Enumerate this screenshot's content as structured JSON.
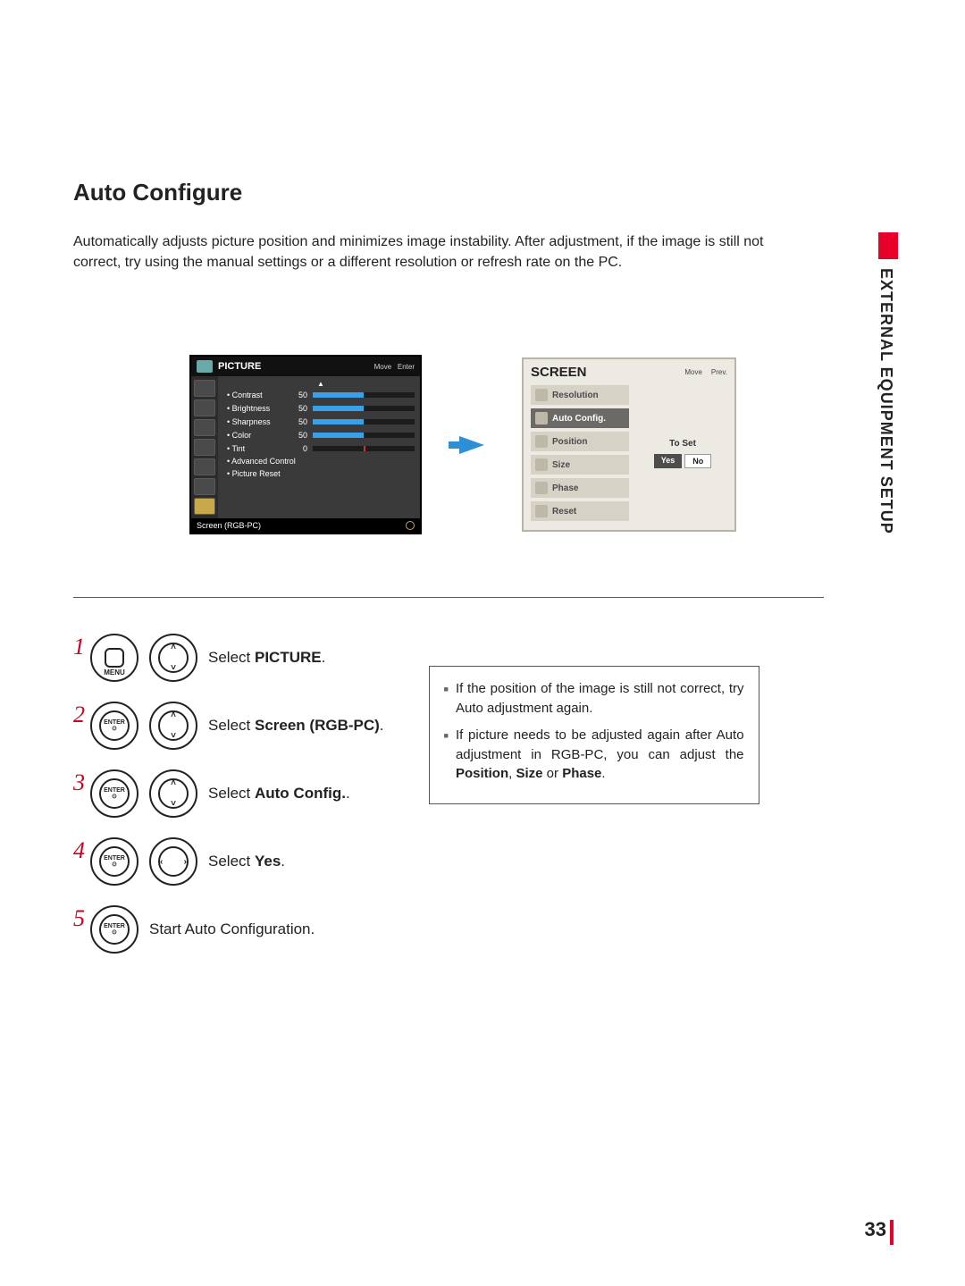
{
  "side_label": "EXTERNAL EQUIPMENT SETUP",
  "title": "Auto Configure",
  "intro": "Automatically adjusts picture position and minimizes image instability. After adjustment, if the image is still not correct, try using the manual settings or a different resolution or refresh rate on the PC.",
  "osd_picture": {
    "header": "PICTURE",
    "header_hint_move": "Move",
    "header_hint_enter": "Enter",
    "rows": [
      {
        "label": "• Contrast",
        "value": "50",
        "fill": 50
      },
      {
        "label": "• Brightness",
        "value": "50",
        "fill": 50
      },
      {
        "label": "• Sharpness",
        "value": "50",
        "fill": 50
      },
      {
        "label": "• Color",
        "value": "50",
        "fill": 50
      },
      {
        "label": "• Tint",
        "value": "0",
        "tint": true
      }
    ],
    "advanced": "• Advanced Control",
    "reset": "• Picture Reset",
    "selected": "Screen (RGB-PC)",
    "icon_count": 7,
    "bar_fill_color": "#3aa0e8"
  },
  "osd_screen": {
    "header": "SCREEN",
    "hint_move": "Move",
    "hint_prev": "Prev.",
    "items": [
      "Resolution",
      "Auto Config.",
      "Position",
      "Size",
      "Phase",
      "Reset"
    ],
    "selected_index": 1,
    "toset": "To Set",
    "yes": "Yes",
    "no": "No"
  },
  "steps": [
    {
      "n": "1",
      "btn1": "menu",
      "btn2": "dpad-ud",
      "text_pre": "Select ",
      "text_bold": "PICTURE",
      "text_post": "."
    },
    {
      "n": "2",
      "btn1": "enter",
      "btn2": "dpad-ud",
      "text_pre": "Select ",
      "text_bold": "Screen (RGB-PC)",
      "text_post": "."
    },
    {
      "n": "3",
      "btn1": "enter",
      "btn2": "dpad-ud",
      "text_pre": "Select ",
      "text_bold": "Auto Config.",
      "text_post": "."
    },
    {
      "n": "4",
      "btn1": "enter",
      "btn2": "dpad-lr",
      "text_pre": "Select ",
      "text_bold": "Yes",
      "text_post": "."
    },
    {
      "n": "5",
      "btn1": "enter",
      "btn2": "",
      "text_pre": "Start Auto Configuration.",
      "text_bold": "",
      "text_post": ""
    }
  ],
  "btn_labels": {
    "menu": "MENU",
    "enter": "ENTER"
  },
  "notes": [
    {
      "pre": "If the position of the image is still not correct, try Auto adjustment again."
    },
    {
      "pre": "If picture needs to be adjusted again after Auto adjustment in RGB-PC, you can adjust the ",
      "bold": "Position",
      "mid": ", ",
      "bold2": "Size",
      "mid2": " or ",
      "bold3": "Phase",
      "post": "."
    }
  ],
  "page_number": "33",
  "colors": {
    "accent": "#e8002b",
    "bg": "#ffffff"
  }
}
